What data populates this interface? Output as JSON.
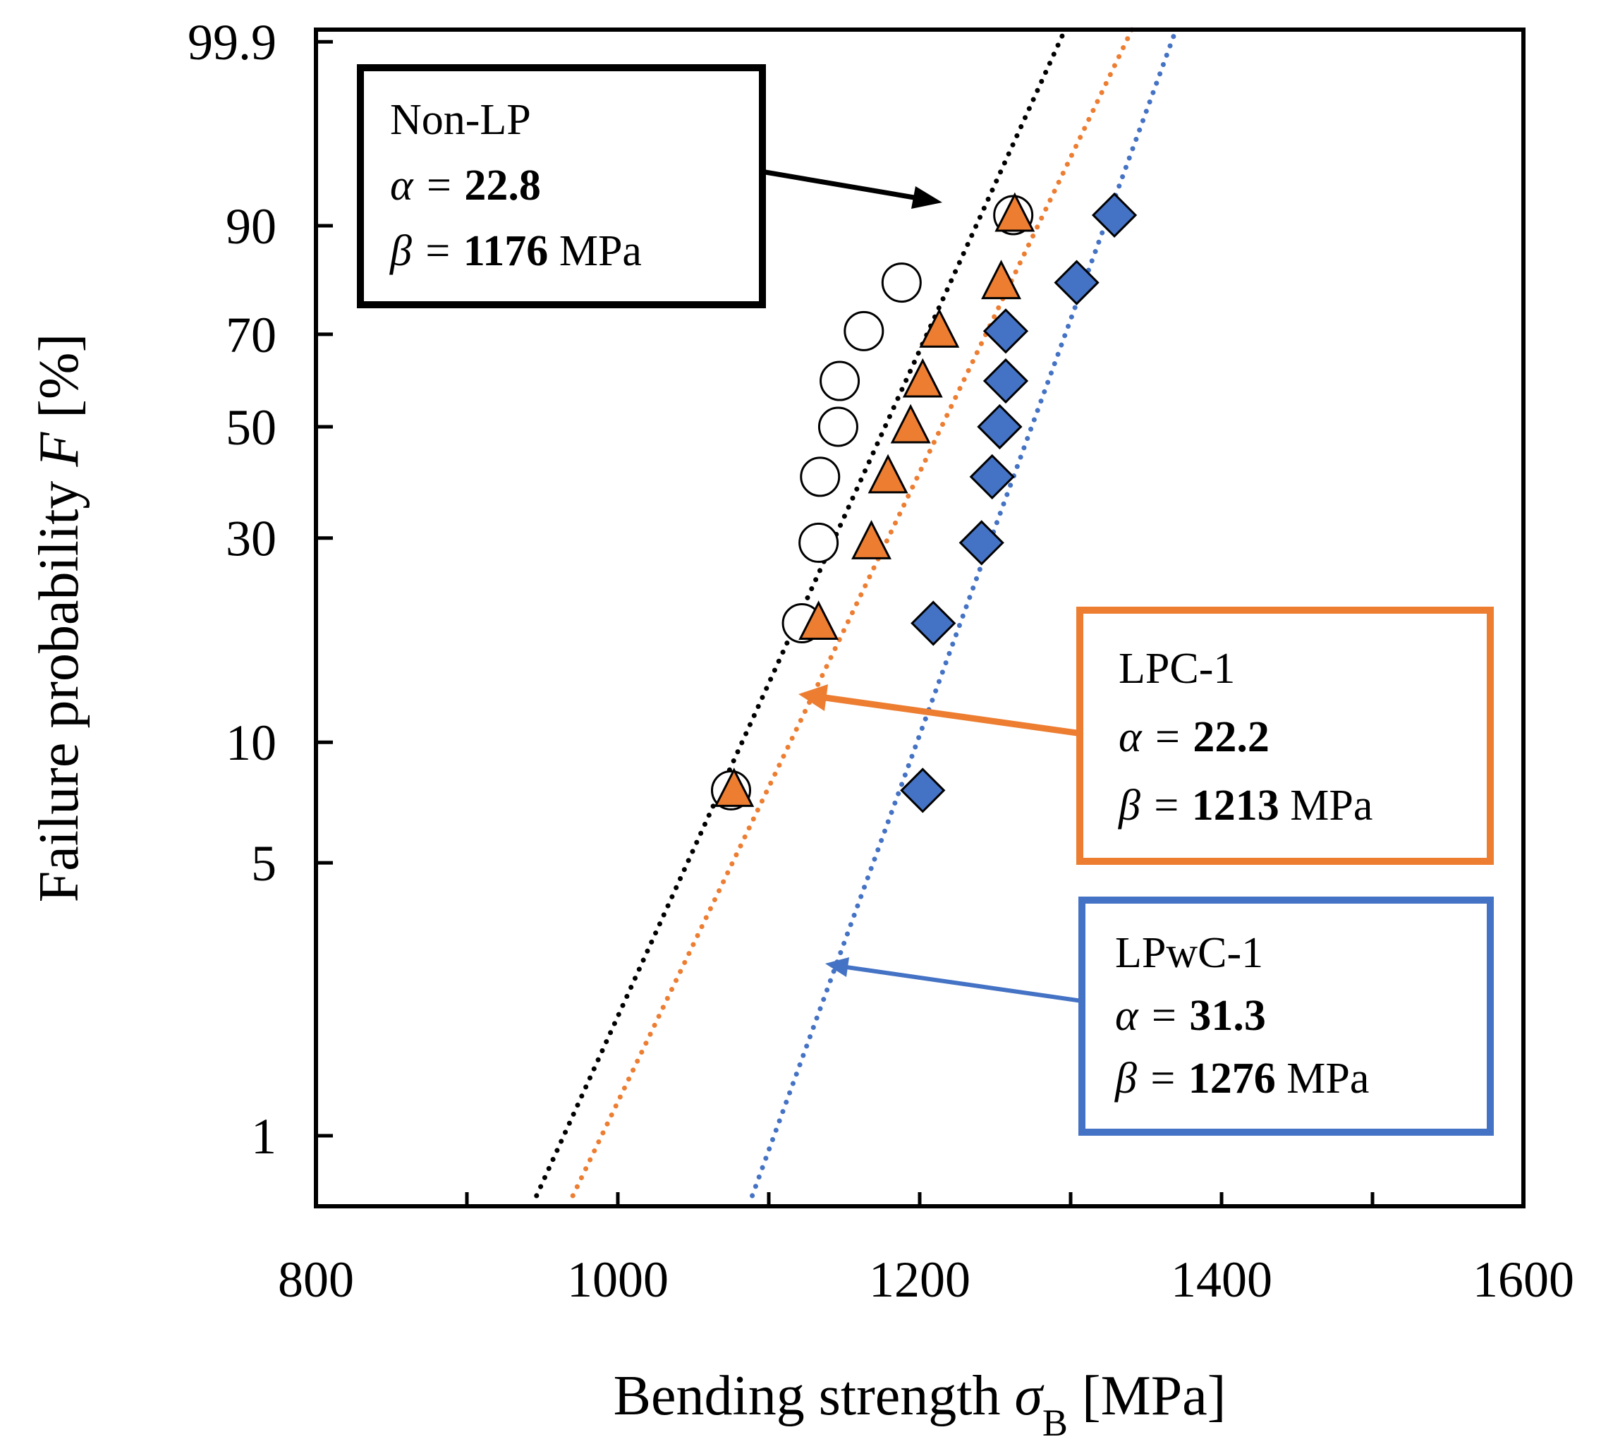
{
  "chart_data": {
    "type": "scatter",
    "title": "",
    "xlabel": {
      "text": "Bending strength ",
      "symbol": "σ",
      "subscript": "B",
      "unit": " [MPa]"
    },
    "ylabel": {
      "text": "Failure probability ",
      "symbol": "F",
      "unit": " [%]"
    },
    "xlim": [
      800,
      1600
    ],
    "xticks": [
      800,
      900,
      1000,
      1100,
      1200,
      1300,
      1400,
      1500,
      1600
    ],
    "xtick_labels": [
      "800",
      "1000",
      "1200",
      "1400",
      "1600"
    ],
    "ylim": [
      0.7,
      99.99
    ],
    "yscale": "weibull",
    "yticks": [
      1,
      5,
      10,
      30,
      50,
      70,
      90,
      99.9
    ],
    "ytick_labels": [
      "1",
      "5",
      "10",
      "30",
      "50",
      "70",
      "90",
      "99.9"
    ],
    "grid": false,
    "series": [
      {
        "name": "Non-LP",
        "marker": "circle",
        "color": "#ffffff",
        "edge_color": "#000000",
        "line_color": "#000000",
        "alpha_label": "α = ",
        "alpha": "22.8",
        "beta_label": "β = ",
        "beta": "1176",
        "beta_unit": " MPa",
        "points": [
          [
            1075,
            7.6
          ],
          [
            1122,
            19.3
          ],
          [
            1133,
            29.3
          ],
          [
            1134,
            40.2
          ],
          [
            1146,
            50.0
          ],
          [
            1147,
            59.8
          ],
          [
            1163,
            70.7
          ],
          [
            1188,
            80.6
          ],
          [
            1262,
            91.4
          ]
        ]
      },
      {
        "name": "LPC-1",
        "marker": "triangle",
        "color": "#ED7D31",
        "edge_color": "#000000",
        "line_color": "#ED7D31",
        "alpha_label": "α = ",
        "alpha": "22.2",
        "beta_label": "β = ",
        "beta": "1213",
        "beta_unit": " MPa",
        "points": [
          [
            1077,
            7.6
          ],
          [
            1133,
            19.3
          ],
          [
            1168,
            29.3
          ],
          [
            1179,
            40.2
          ],
          [
            1194,
            50.0
          ],
          [
            1202,
            59.8
          ],
          [
            1213,
            70.7
          ],
          [
            1254,
            80.6
          ],
          [
            1263,
            91.4
          ]
        ]
      },
      {
        "name": "LPwC-1",
        "marker": "diamond",
        "color": "#4472C4",
        "edge_color": "#000000",
        "line_color": "#4472C4",
        "alpha_label": "α = ",
        "alpha": "31.3",
        "beta_label": "β = ",
        "beta": "1276",
        "beta_unit": " MPa",
        "points": [
          [
            1202,
            7.6
          ],
          [
            1209,
            19.3
          ],
          [
            1241,
            29.3
          ],
          [
            1248,
            40.2
          ],
          [
            1253,
            50.0
          ],
          [
            1257,
            59.8
          ],
          [
            1257,
            70.7
          ],
          [
            1304,
            80.6
          ],
          [
            1329,
            91.4
          ]
        ]
      }
    ]
  }
}
